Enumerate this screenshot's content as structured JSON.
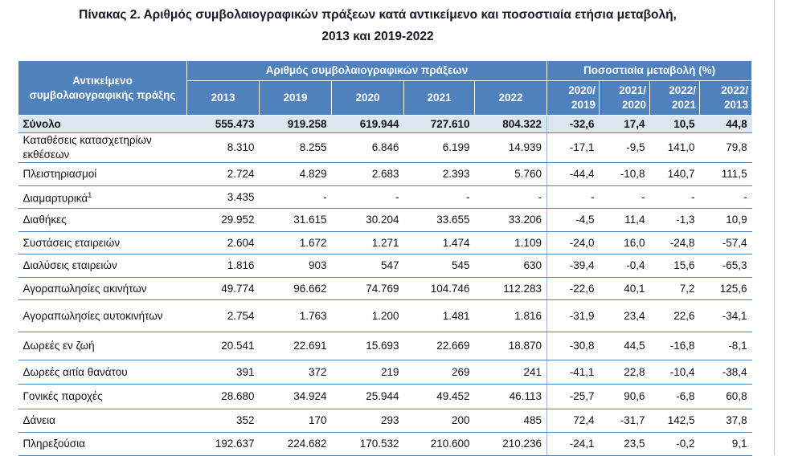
{
  "title": {
    "line1": "Πίνακας 2. Αριθμός συμβολαιογραφικών πράξεων κατά αντικείμενο και ποσοστιαία ετήσια μεταβολή,",
    "line2": "2013 και 2019-2022"
  },
  "table": {
    "header": {
      "subject": "Αντικείμενο συμβολαιογραφικής πράξης",
      "count_group": "Αριθμός συμβολαιογραφικών πράξεων",
      "change_group": "Ποσοστιαία μεταβολή (%)",
      "columns": [
        "2013",
        "2019",
        "2020",
        "2021",
        "2022",
        "2020/\n2019",
        "2021/\n2020",
        "2022/\n2021",
        "2022/\n2013"
      ]
    },
    "rows": [
      {
        "label": "Σύνολο",
        "values": [
          "555.473",
          "919.258",
          "619.944",
          "727.610",
          "804.322",
          "-32,6",
          "17,4",
          "10,5",
          "44,8"
        ]
      },
      {
        "label": "Καταθέσεις κατασχετηρίων εκθέσεων",
        "values": [
          "8.310",
          "8.255",
          "6.846",
          "6.199",
          "14.939",
          "-17,1",
          "-9,5",
          "141,0",
          "79,8"
        ]
      },
      {
        "label": "Πλειστηριασμοί",
        "values": [
          "2.724",
          "4.829",
          "2.683",
          "2.393",
          "5.760",
          "-44,4",
          "-10,8",
          "140,7",
          "111,5"
        ]
      },
      {
        "label": "Διαμαρτυρικά",
        "note": "1",
        "values": [
          "3.435",
          "-",
          "-",
          "-",
          "-",
          "-",
          "-",
          "-",
          "-"
        ]
      },
      {
        "label": "Διαθήκες",
        "values": [
          "29.952",
          "31.615",
          "30.204",
          "33.655",
          "33.206",
          "-4,5",
          "11,4",
          "-1,3",
          "10,9"
        ]
      },
      {
        "label": "Συστάσεις εταιρειών",
        "values": [
          "2.604",
          "1.672",
          "1.271",
          "1.474",
          "1.109",
          "-24,0",
          "16,0",
          "-24,8",
          "-57,4"
        ]
      },
      {
        "label": "Διαλύσεις εταιρειών",
        "values": [
          "1.816",
          "903",
          "547",
          "545",
          "630",
          "-39,4",
          "-0,4",
          "15,6",
          "-65,3"
        ]
      },
      {
        "label": "Αγοραπωλησίες ακινήτων",
        "values": [
          "49.774",
          "96.662",
          "74.769",
          "104.746",
          "112.283",
          "-22,6",
          "40,1",
          "7,2",
          "125,6"
        ]
      },
      {
        "label": "Αγοραπωλησίες αυτοκινήτων",
        "values": [
          "2.754",
          "1.763",
          "1.200",
          "1.481",
          "1.816",
          "-31,9",
          "23,4",
          "22,6",
          "-34,1"
        ]
      },
      {
        "label": "Δωρεές εν ζωή",
        "values": [
          "20.541",
          "22.691",
          "15.693",
          "22.669",
          "18.870",
          "-30,8",
          "44,5",
          "-16,8",
          "-8,1"
        ]
      },
      {
        "label": "Δωρεές αιτία θανάτου",
        "values": [
          "391",
          "372",
          "219",
          "269",
          "241",
          "-41,1",
          "22,8",
          "-10,4",
          "-38,4"
        ]
      },
      {
        "label": "Γονικές παροχές",
        "values": [
          "28.680",
          "34.924",
          "25.944",
          "49.452",
          "46.113",
          "-25,7",
          "90,6",
          "-6,8",
          "60,8"
        ]
      },
      {
        "label": "Δάνεια",
        "values": [
          "352",
          "170",
          "293",
          "200",
          "485",
          "72,4",
          "-31,7",
          "142,5",
          "37,8"
        ]
      },
      {
        "label": "Πληρεξούσια",
        "values": [
          "192.637",
          "224.682",
          "170.532",
          "210.600",
          "210.236",
          "-24,1",
          "23,5",
          "-0,2",
          "9,1"
        ]
      }
    ]
  }
}
